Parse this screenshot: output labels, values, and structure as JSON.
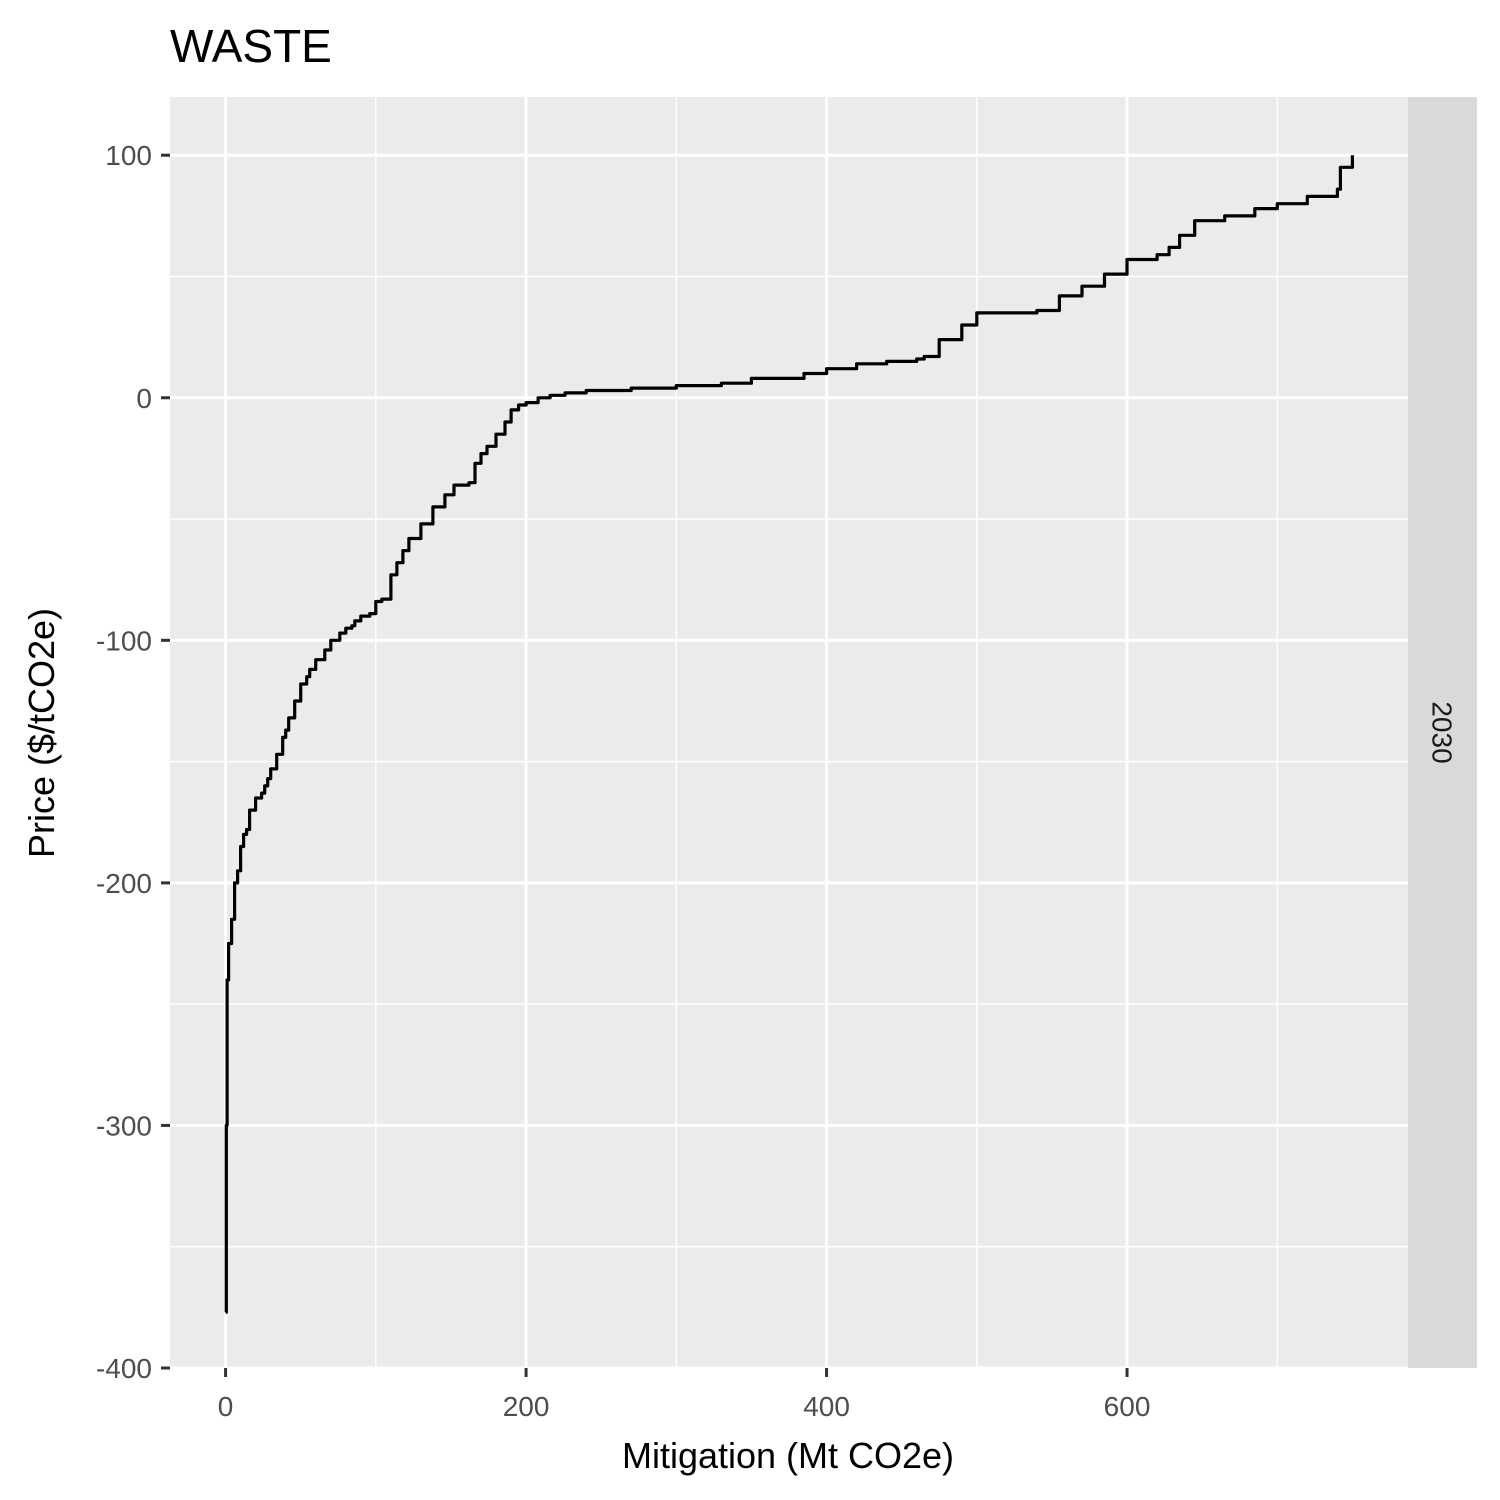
{
  "chart_data": {
    "type": "line",
    "title": "WASTE",
    "xlabel": "Mitigation (Mt CO2e)",
    "ylabel": "Price ($/tCO2e)",
    "facet_label": "2030",
    "xlim": [
      -37,
      787
    ],
    "ylim": [
      -400,
      124
    ],
    "x_ticks": [
      0,
      200,
      400,
      600
    ],
    "x_minor_ticks": [
      100,
      300,
      500,
      700
    ],
    "y_ticks": [
      100,
      0,
      -100,
      -200,
      -300,
      -400
    ],
    "y_minor_ticks": [
      50,
      -50,
      -150,
      -250,
      -350
    ],
    "x_tick_labels": [
      "0",
      "200",
      "400",
      "600"
    ],
    "y_tick_labels": [
      "100",
      "0",
      "-100",
      "-200",
      "-300",
      "-400"
    ],
    "grid": true,
    "line_color": "#000000",
    "series": [
      {
        "x": [
          0,
          0.5,
          1,
          2,
          4,
          6,
          8,
          10,
          12,
          14,
          16,
          20,
          24,
          26,
          28,
          30,
          34,
          38,
          40,
          42,
          46,
          50,
          54,
          56,
          60,
          66,
          70,
          76,
          80,
          84,
          86,
          90,
          96,
          100,
          104,
          110,
          114,
          118,
          122,
          130,
          138,
          146,
          152,
          162,
          166,
          170,
          174,
          180,
          186,
          190,
          195,
          200,
          208,
          216,
          226,
          240,
          270,
          300,
          330,
          350,
          385,
          400,
          420,
          440,
          460,
          465,
          475,
          490,
          500,
          515,
          540,
          555,
          570,
          585,
          600,
          620,
          628,
          635,
          645,
          665,
          685,
          700,
          720,
          740,
          742,
          750
        ],
        "y": [
          -377,
          -300,
          -240,
          -225,
          -215,
          -200,
          -195,
          -185,
          -180,
          -178,
          -170,
          -165,
          -163,
          -160,
          -157,
          -153,
          -147,
          -140,
          -137,
          -132,
          -125,
          -118,
          -115,
          -112,
          -108,
          -104,
          -100,
          -97,
          -95,
          -94,
          -92,
          -90,
          -89,
          -84,
          -83,
          -73,
          -68,
          -63,
          -58,
          -52,
          -45,
          -40,
          -36,
          -35,
          -27,
          -23,
          -20,
          -15,
          -10,
          -5,
          -3,
          -2,
          0,
          1,
          2,
          3,
          4,
          5,
          6,
          8,
          10,
          12,
          14,
          15,
          16,
          17,
          24,
          30,
          35,
          35,
          36,
          42,
          46,
          51,
          57,
          59,
          62,
          67,
          73,
          75,
          78,
          80,
          83,
          86,
          95,
          100
        ]
      }
    ]
  }
}
